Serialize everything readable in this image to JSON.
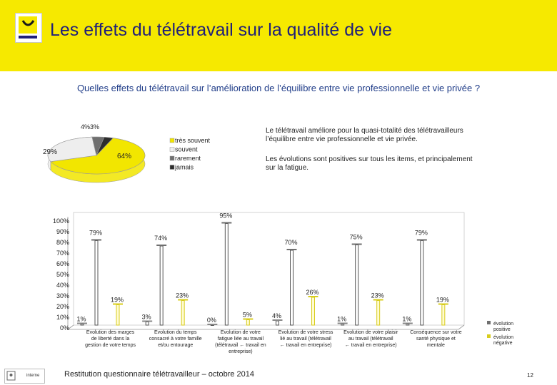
{
  "header": {
    "title": "Les effets du télétravail sur la qualité de vie",
    "logo_icon": "smile-logo-icon",
    "background": "#f6e900"
  },
  "subtitle": "Quelles effets du télétravail sur l’amélioration de l’équilibre entre vie professionnelle et vie privée ?",
  "summary": {
    "p1": "Le télétravail améliore pour la quasi-totalité des télétravailleurs l’équilibre entre vie professionnelle et vie privée.",
    "p2": "Les évolutions sont positives sur tous les items, et principalement sur la fatigue."
  },
  "footer": {
    "text": "Restitution questionnaire télétravailleur – octobre 2014",
    "page_number": "12",
    "logo_text": "interne"
  },
  "chart_data": [
    {
      "type": "pie",
      "title": "",
      "slices": [
        {
          "label": "très souvent",
          "value": 64,
          "display": "64%",
          "color": "#f2e600"
        },
        {
          "label": "souvent",
          "value": 29,
          "display": "29%",
          "color": "#eeeeee"
        },
        {
          "label": "rarement",
          "value": 4,
          "display": "4%",
          "color": "#6f6f6f"
        },
        {
          "label": "jamais",
          "value": 3,
          "display": "3%",
          "color": "#2d2d2d"
        }
      ],
      "top_label": "4%3%",
      "legend_position": "right"
    },
    {
      "type": "bar",
      "title": "",
      "categories": [
        "Evolution des marges de liberté dans la gestion de votre temps",
        "Evolution du temps consacré à votre famille et/ou entourage",
        "Evolution de votre fatigue liée au travail (télétravail ← travail en entreprise)",
        "Evolution de votre stress lié au travail (télétravail ← travail en entreprise)",
        "Evolution de votre plaisir au travail (télétravail ← travail en entreprise)",
        "Conséquence sur votre santé physique et mentale"
      ],
      "category_lines": [
        [
          "Evolution des marges",
          "de liberté dans la",
          "gestion de votre temps"
        ],
        [
          "Evolution du temps",
          "consacré à votre famille",
          "et/ou entourage"
        ],
        [
          "Evolution de votre",
          "fatigue liée au travail",
          "(télétravail ← travail en",
          "entreprise)"
        ],
        [
          "Evolution de votre stress",
          "lié au travail (télétravail",
          "← travail en entreprise)"
        ],
        [
          "Evolution de votre plaisir",
          "au travail (télétravail",
          "← travail en entreprise)"
        ],
        [
          "Conséquence sur votre",
          "santé physique et",
          "mentale"
        ]
      ],
      "series": [
        {
          "name": "évolution positive",
          "legend_lines": [
            "évolution",
            "positive"
          ],
          "color": "#6f6f6f",
          "values": [
            79,
            74,
            95,
            70,
            75,
            79
          ],
          "labels": [
            "79%",
            "74%",
            "95%",
            "70%",
            "75%",
            "79%"
          ]
        },
        {
          "name": "évolution négative",
          "legend_lines": [
            "évolution",
            "négative"
          ],
          "color": "#d8cd1e",
          "values": [
            19,
            23,
            5,
            26,
            23,
            19
          ],
          "labels": [
            "19%",
            "23%",
            "5%",
            "26%",
            "23%",
            "19%"
          ]
        },
        {
          "name": "",
          "color": "#ffffff",
          "values": [
            1,
            3,
            0,
            4,
            1,
            1
          ],
          "labels": [
            "1%",
            "3%",
            "0%",
            "4%",
            "1%",
            "1%"
          ]
        }
      ],
      "ylim": [
        0,
        100
      ],
      "yticks": [
        "0%",
        "10%",
        "20%",
        "30%",
        "40%",
        "50%",
        "60%",
        "70%",
        "80%",
        "90%",
        "100%"
      ],
      "xlabel": "",
      "ylabel": "",
      "legend_position": "right"
    }
  ]
}
